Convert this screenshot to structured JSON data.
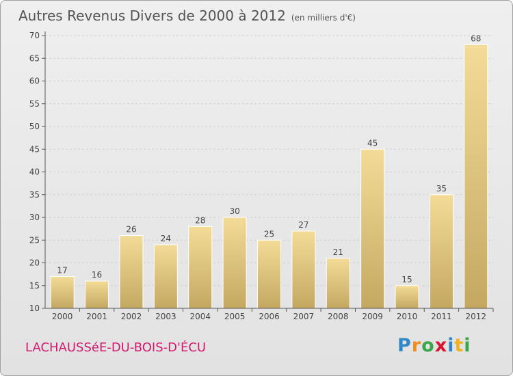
{
  "header": {
    "title": "Autres Revenus Divers de 2000 à 2012",
    "unit_note": "(en milliers d'€)"
  },
  "footer": {
    "commune": "LACHAUSSéE-DU-BOIS-D'ÉCU",
    "logo_letters": [
      "P",
      "r",
      "o",
      "x",
      "i",
      "t",
      "i"
    ],
    "logo_colors": [
      "#2f87c6",
      "#f28c1e",
      "#3aa64a",
      "#d5162e",
      "#2f87c6",
      "#f2b21e",
      "#3aa64a"
    ]
  },
  "chart_data": {
    "type": "bar",
    "categories": [
      "2000",
      "2001",
      "2002",
      "2003",
      "2004",
      "2005",
      "2006",
      "2007",
      "2008",
      "2009",
      "2010",
      "2011",
      "2012"
    ],
    "values": [
      17,
      16,
      26,
      24,
      28,
      30,
      25,
      27,
      21,
      45,
      15,
      35,
      68
    ],
    "ylim": [
      10,
      70
    ],
    "yticks": [
      10,
      15,
      20,
      25,
      30,
      35,
      40,
      45,
      50,
      55,
      60,
      65,
      70
    ],
    "grid": true,
    "bar_color_top": "#f3dc97",
    "bar_color_bottom": "#c4a862"
  }
}
